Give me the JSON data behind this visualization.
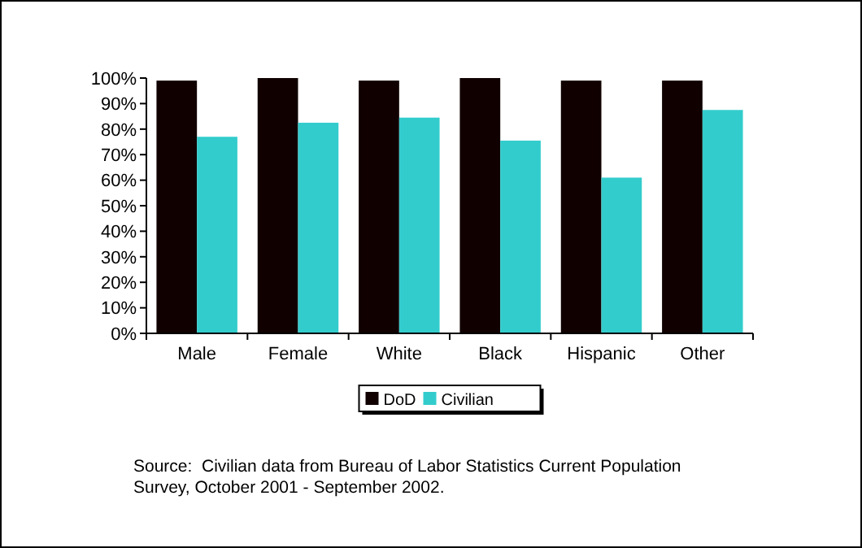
{
  "chart_data": {
    "type": "bar",
    "categories": [
      "Male",
      "Female",
      "White",
      "Black",
      "Hispanic",
      "Other"
    ],
    "series": [
      {
        "name": "DoD",
        "color": "#100000",
        "values": [
          99,
          100,
          99,
          100,
          99,
          99
        ]
      },
      {
        "name": "Civilian",
        "color": "#33cccc",
        "values": [
          77,
          82.5,
          84.5,
          75.5,
          61,
          87.5
        ]
      }
    ],
    "ylim": [
      0,
      100
    ],
    "yticks": [
      {
        "value": 0,
        "label": "0%"
      },
      {
        "value": 10,
        "label": "10%"
      },
      {
        "value": 20,
        "label": "20%"
      },
      {
        "value": 30,
        "label": "30%"
      },
      {
        "value": 40,
        "label": "40%"
      },
      {
        "value": 50,
        "label": "50%"
      },
      {
        "value": 60,
        "label": "60%"
      },
      {
        "value": 70,
        "label": "70%"
      },
      {
        "value": 80,
        "label": "80%"
      },
      {
        "value": 90,
        "label": "90%"
      },
      {
        "value": 100,
        "label": "100%"
      }
    ],
    "grid": false,
    "legend": "bottom",
    "annotations": [
      "Source:  Civilian data from Bureau of Labor Statistics Current Population Survey, October 2001 - September 2002."
    ]
  }
}
